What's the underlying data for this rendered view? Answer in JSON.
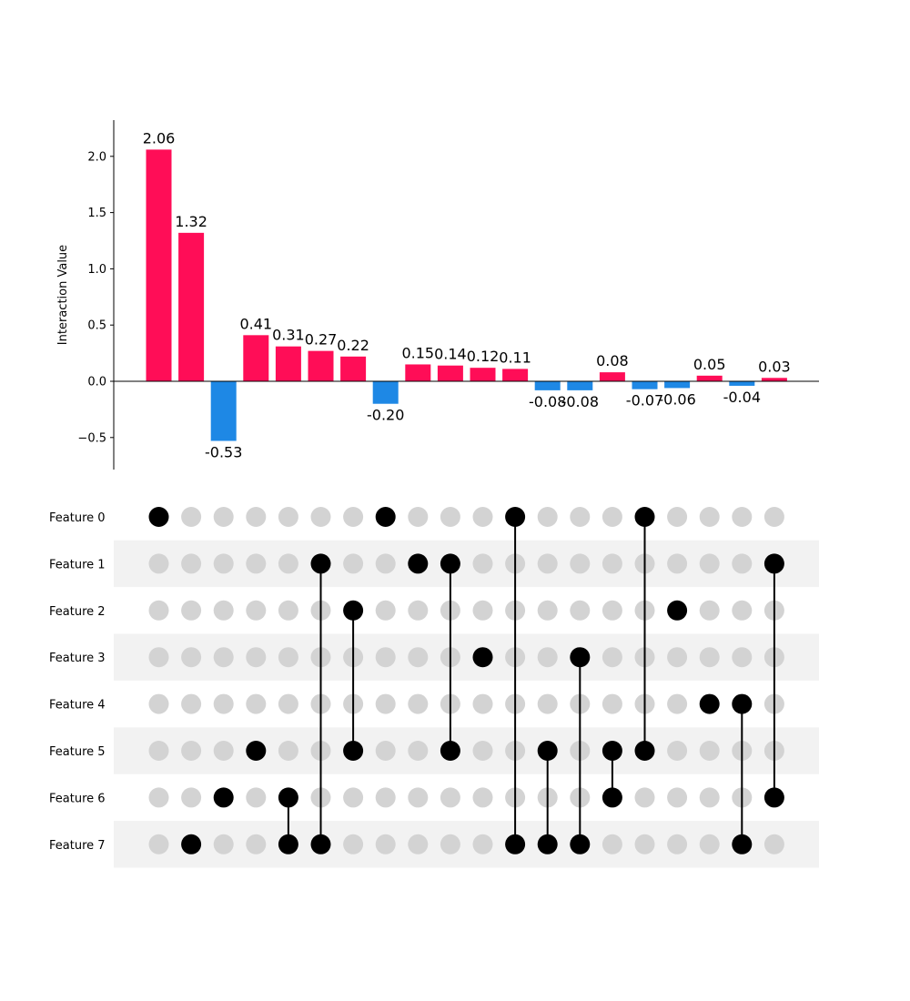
{
  "chart_data": {
    "type": "bar",
    "ylabel": "Interaction Value",
    "ylim": [
      -0.78,
      2.32
    ],
    "yticks": [
      -0.5,
      0.0,
      0.5,
      1.0,
      1.5,
      2.0
    ],
    "ytick_labels": [
      "−0.5",
      "0.0",
      "0.5",
      "1.0",
      "1.5",
      "2.0"
    ],
    "values": [
      2.06,
      1.32,
      -0.53,
      0.41,
      0.31,
      0.27,
      0.22,
      -0.2,
      0.15,
      0.14,
      0.12,
      0.11,
      -0.08,
      -0.08,
      0.08,
      -0.07,
      -0.06,
      0.05,
      -0.04,
      0.03
    ],
    "value_labels": [
      "2.06",
      "1.32",
      "-0.53",
      "0.41",
      "0.31",
      "0.27",
      "0.22",
      "-0.20",
      "0.15",
      "0.14",
      "0.12",
      "0.11",
      "-0.08",
      "-0.08",
      "0.08",
      "-0.07",
      "-0.06",
      "0.05",
      "-0.04",
      "0.03"
    ],
    "features": [
      "Feature 0",
      "Feature 1",
      "Feature 2",
      "Feature 3",
      "Feature 4",
      "Feature 5",
      "Feature 6",
      "Feature 7"
    ],
    "interactions": [
      [
        0
      ],
      [
        7
      ],
      [
        6
      ],
      [
        5
      ],
      [
        6,
        7
      ],
      [
        1,
        7
      ],
      [
        2,
        5
      ],
      [
        0
      ],
      [
        1
      ],
      [
        1,
        5
      ],
      [
        3
      ],
      [
        0,
        7
      ],
      [
        5,
        7
      ],
      [
        3,
        7
      ],
      [
        5,
        6
      ],
      [
        0,
        5
      ],
      [
        2
      ],
      [
        4
      ],
      [
        4,
        7
      ],
      [
        1,
        6
      ]
    ],
    "colors": {
      "positive": "#ff0d57",
      "negative": "#1e88e5",
      "active_dot": "#000000",
      "inactive_dot": "#d3d3d3",
      "row_shade": "#f2f2f2"
    }
  }
}
